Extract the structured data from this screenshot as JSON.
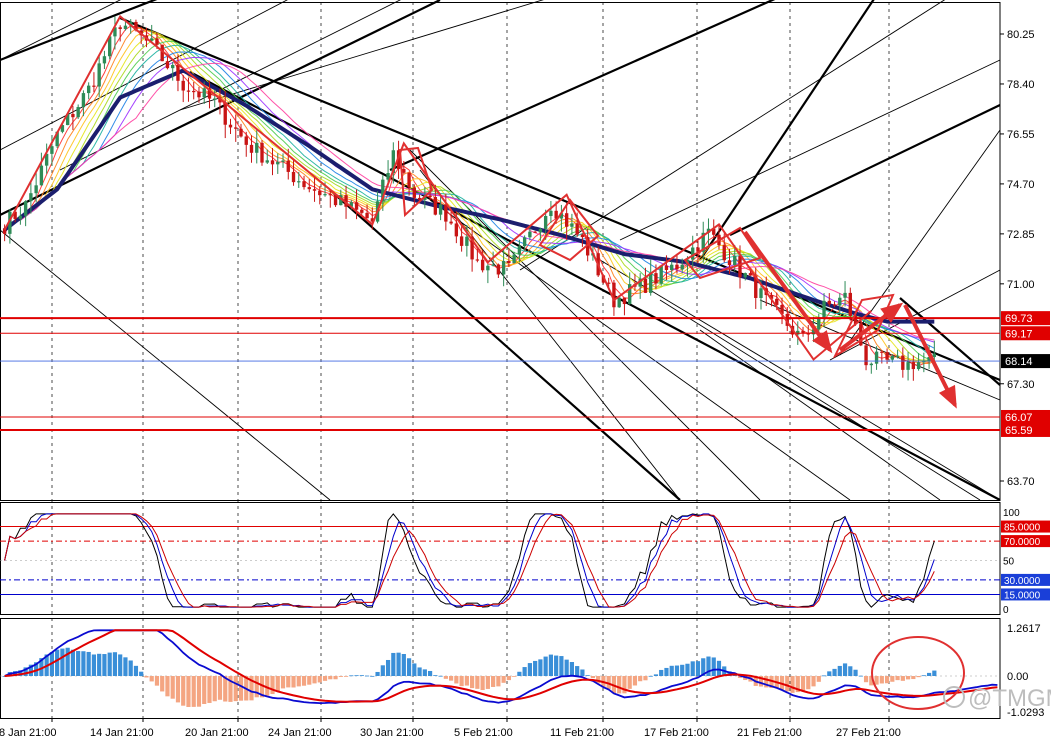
{
  "colors": {
    "background": "#ffffff",
    "grid": "#000000",
    "bull": "#2e8b57",
    "bear": "#c81414",
    "ma_slow": "#1b1e6e",
    "level_line": "#e00000",
    "current_line": "#4169e1",
    "macd_hist_pos": "#3a8fd8",
    "macd_hist_neg": "#f4a582",
    "macd_line": "#0a0ad0",
    "signal_line": "#e00000",
    "stoch_k": "#000000",
    "stoch_d": "#0000cc",
    "stoch_rsi": "#cc0000",
    "callout": "#e03030",
    "watermark": "#bdbdbd"
  },
  "watermark": {
    "text": "@TMGM",
    "icon": "weibo-icon"
  },
  "chart_data": [
    {
      "type": "candlestick",
      "panel": "price",
      "y_ticks": [
        "80.25",
        "78.40",
        "76.55",
        "74.70",
        "72.85",
        "71.00",
        "67.30",
        "63.70"
      ],
      "ylim": [
        63.0,
        81.2
      ],
      "x_labels": [
        "8 Jan 21:00",
        "14 Jan 21:00",
        "20 Jan 21:00",
        "24 Jan 21:00",
        "30 Jan 21:00",
        "5 Feb 21:00",
        "11 Feb 21:00",
        "17 Feb 21:00",
        "21 Feb 21:00",
        "27 Feb 21:00"
      ],
      "bar_count": 190,
      "close_path": [
        [
          0,
          73.2
        ],
        [
          4,
          73.9
        ],
        [
          10,
          76.5
        ],
        [
          16,
          78.2
        ],
        [
          22,
          80.7
        ],
        [
          28,
          79.8
        ],
        [
          34,
          78.4
        ],
        [
          40,
          77.7
        ],
        [
          46,
          76.2
        ],
        [
          52,
          75.4
        ],
        [
          58,
          74.6
        ],
        [
          64,
          74.0
        ],
        [
          70,
          73.3
        ],
        [
          74,
          75.8
        ],
        [
          78,
          74.3
        ],
        [
          84,
          73.6
        ],
        [
          90,
          71.8
        ],
        [
          96,
          71.5
        ],
        [
          104,
          74.0
        ],
        [
          110,
          72.6
        ],
        [
          116,
          70.4
        ],
        [
          122,
          71.0
        ],
        [
          128,
          71.7
        ],
        [
          134,
          72.9
        ],
        [
          140,
          71.5
        ],
        [
          146,
          70.1
        ],
        [
          152,
          68.9
        ],
        [
          156,
          70.1
        ],
        [
          160,
          70.5
        ],
        [
          164,
          68.2
        ],
        [
          168,
          68.1
        ],
        [
          172,
          68.0
        ]
      ],
      "moving_average_slow": [
        [
          0,
          73.0
        ],
        [
          10,
          74.5
        ],
        [
          22,
          77.9
        ],
        [
          34,
          78.9
        ],
        [
          46,
          77.6
        ],
        [
          58,
          76.1
        ],
        [
          70,
          74.5
        ],
        [
          82,
          73.9
        ],
        [
          94,
          73.4
        ],
        [
          106,
          72.8
        ],
        [
          118,
          72.1
        ],
        [
          130,
          71.8
        ],
        [
          142,
          71.2
        ],
        [
          154,
          70.4
        ],
        [
          162,
          69.9
        ],
        [
          168,
          69.6
        ]
      ],
      "horizontal_levels": [
        {
          "label": "69.73",
          "value": 69.73
        },
        {
          "label": "69.17",
          "value": 69.17
        },
        {
          "label": "66.07",
          "value": 66.07
        },
        {
          "label": "65.59",
          "value": 65.59
        }
      ],
      "current_price": {
        "label": "68.14",
        "value": 68.14
      },
      "zigzag": [
        [
          0,
          73.0
        ],
        [
          22,
          80.9
        ],
        [
          70,
          73.2
        ],
        [
          76,
          76.2
        ],
        [
          92,
          71.8
        ],
        [
          107,
          74.3
        ],
        [
          116,
          70.4
        ],
        [
          136,
          73.2
        ],
        [
          154,
          68.2
        ],
        [
          165,
          70.0
        ]
      ]
    },
    {
      "type": "line",
      "panel": "stochastic",
      "y_ticks": [
        "100",
        "50",
        "0"
      ],
      "ylim": [
        0,
        100
      ],
      "levels": [
        {
          "label": "85.0000",
          "value": 85
        },
        {
          "label": "70.0000",
          "value": 70
        },
        {
          "label": "30.0000",
          "value": 30
        },
        {
          "label": "15.0000",
          "value": 15
        }
      ]
    },
    {
      "type": "histogram+line",
      "panel": "macd",
      "y_ticks": [
        "1.2617",
        "0.00",
        "-1.0293"
      ],
      "ylim": [
        -1.0293,
        1.2617
      ]
    }
  ]
}
